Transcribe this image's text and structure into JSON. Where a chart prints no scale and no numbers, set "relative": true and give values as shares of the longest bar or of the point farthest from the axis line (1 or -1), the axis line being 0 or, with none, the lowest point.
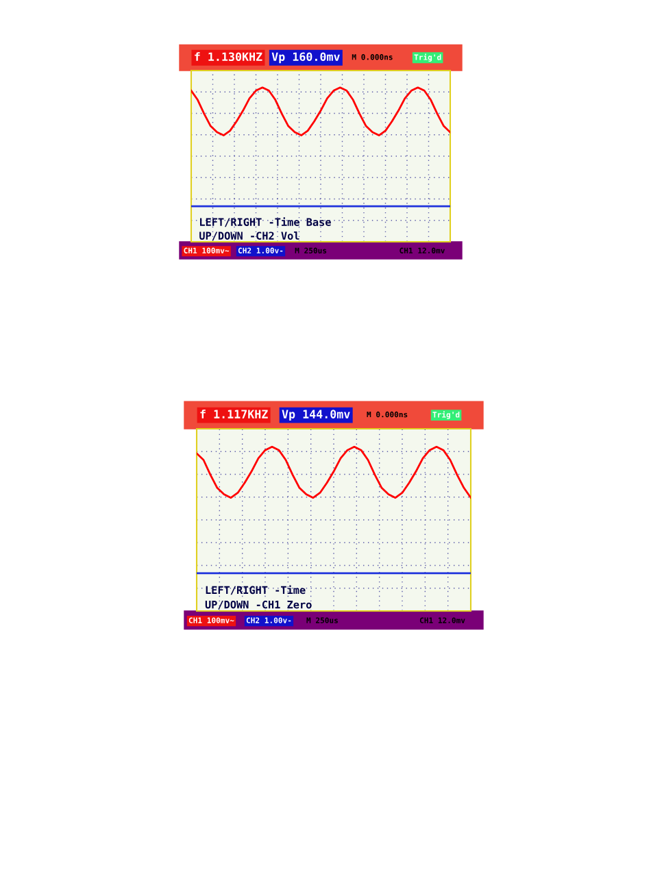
{
  "chart_data": [
    {
      "type": "line",
      "relative": true,
      "grid": true,
      "tick_labels": false,
      "marker": "none",
      "line_style": "solid",
      "categories": [
        null,
        null,
        null,
        null,
        null,
        null,
        null,
        null,
        null,
        null,
        null,
        null,
        null,
        null,
        null,
        null,
        null,
        null,
        null,
        null,
        null,
        null,
        null,
        null,
        null,
        null,
        null,
        null,
        null,
        null,
        null,
        null,
        null,
        null,
        null,
        null,
        null,
        null,
        null,
        null,
        null
      ],
      "series": [
        {
          "color": "#ff0000",
          "values": [
            0.98,
            0.92,
            0.83,
            0.75,
            0.71,
            0.69,
            0.72,
            0.78,
            0.85,
            0.93,
            0.98,
            1.0,
            0.98,
            0.92,
            0.83,
            0.75,
            0.71,
            0.69,
            0.72,
            0.78,
            0.85,
            0.93,
            0.98,
            1.0,
            0.98,
            0.92,
            0.83,
            0.75,
            0.71,
            0.69,
            0.72,
            0.78,
            0.85,
            0.93,
            0.98,
            1.0,
            0.98,
            0.92,
            0.83,
            0.75,
            0.71
          ]
        },
        {
          "color": "#1e32dc",
          "values": [
            0.23,
            0.23,
            0.23,
            0.23,
            0.23,
            0.23,
            0.23,
            0.23,
            0.23,
            0.23,
            0.23,
            0.23,
            0.23,
            0.23,
            0.23,
            0.23,
            0.23,
            0.23,
            0.23,
            0.23,
            0.23,
            0.23,
            0.23,
            0.23,
            0.23,
            0.23,
            0.23,
            0.23,
            0.23,
            0.23,
            0.23,
            0.23,
            0.23,
            0.23,
            0.23,
            0.23,
            0.23,
            0.23,
            0.23,
            0.23,
            0.23
          ]
        }
      ],
      "annotations": [
        "f 1.130KHZ",
        "Vp 160.0mv",
        "M 0.000ns",
        "Trig'd",
        "LEFT/RIGHT -Time Base",
        "UP/DOWN -CH2 Vol",
        "CH1 100mv~",
        "CH2 1.00v-",
        "M 250us",
        "CH1 12.0mv"
      ]
    },
    {
      "type": "line",
      "relative": true,
      "grid": true,
      "tick_labels": false,
      "marker": "none",
      "line_style": "solid",
      "categories": [
        null,
        null,
        null,
        null,
        null,
        null,
        null,
        null,
        null,
        null,
        null,
        null,
        null,
        null,
        null,
        null,
        null,
        null,
        null,
        null,
        null,
        null,
        null,
        null,
        null,
        null,
        null,
        null,
        null,
        null,
        null,
        null,
        null,
        null,
        null,
        null,
        null,
        null,
        null,
        null,
        null
      ],
      "series": [
        {
          "color": "#ff0000",
          "values": [
            0.96,
            0.92,
            0.83,
            0.75,
            0.71,
            0.69,
            0.72,
            0.78,
            0.85,
            0.93,
            0.98,
            1.0,
            0.98,
            0.92,
            0.83,
            0.75,
            0.71,
            0.69,
            0.72,
            0.78,
            0.85,
            0.93,
            0.98,
            1.0,
            0.98,
            0.92,
            0.83,
            0.75,
            0.71,
            0.69,
            0.72,
            0.78,
            0.85,
            0.93,
            0.98,
            1.0,
            0.98,
            0.92,
            0.83,
            0.75,
            0.69
          ]
        },
        {
          "color": "#1e32dc",
          "values": [
            0.23,
            0.23,
            0.23,
            0.23,
            0.23,
            0.23,
            0.23,
            0.23,
            0.23,
            0.23,
            0.23,
            0.23,
            0.23,
            0.23,
            0.23,
            0.23,
            0.23,
            0.23,
            0.23,
            0.23,
            0.23,
            0.23,
            0.23,
            0.23,
            0.23,
            0.23,
            0.23,
            0.23,
            0.23,
            0.23,
            0.23,
            0.23,
            0.23,
            0.23,
            0.23,
            0.23,
            0.23,
            0.23,
            0.23,
            0.23,
            0.23
          ]
        }
      ],
      "annotations": [
        "f 1.117KHZ",
        "Vp 144.0mv",
        "M 0.000ns",
        "Trig'd",
        "LEFT/RIGHT -Time",
        "UP/DOWN -CH1 Zero",
        "CH1 100mv~",
        "CH2 1.00v-",
        "M 250us",
        "CH1 12.0mv"
      ]
    }
  ]
}
